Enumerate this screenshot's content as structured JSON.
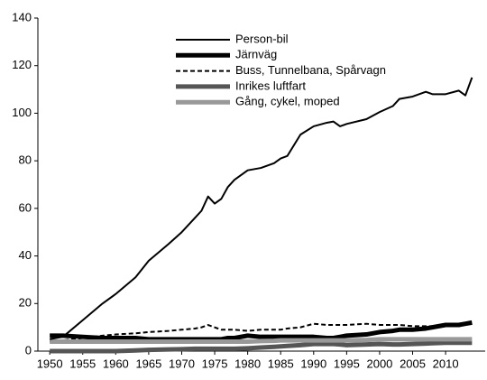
{
  "chart_data": {
    "type": "line",
    "x": [
      1950,
      1952,
      1955,
      1958,
      1960,
      1963,
      1965,
      1968,
      1970,
      1972,
      1973,
      1974,
      1975,
      1976,
      1977,
      1978,
      1980,
      1982,
      1984,
      1985,
      1986,
      1988,
      1990,
      1992,
      1993,
      1994,
      1995,
      1998,
      2000,
      2002,
      2003,
      2005,
      2007,
      2008,
      2010,
      2012,
      2013,
      2014
    ],
    "series": [
      {
        "name": "Person-bil",
        "color": "#000000",
        "linewidth": 2,
        "linestyle": "solid",
        "values": [
          5,
          6,
          13,
          20,
          24,
          31,
          38,
          45,
          50,
          56,
          59,
          65,
          62,
          64,
          69,
          72,
          76,
          77,
          79,
          81,
          82,
          91,
          94.5,
          96,
          96.5,
          94.5,
          95.5,
          97.5,
          100.5,
          103,
          106,
          107,
          109,
          108,
          108,
          109.5,
          107.5,
          115
        ]
      },
      {
        "name": "Järnväg",
        "color": "#000000",
        "linewidth": 5,
        "linestyle": "solid",
        "values": [
          6.5,
          6.5,
          6,
          5.5,
          5.5,
          5.5,
          5,
          5,
          5,
          5,
          5,
          5,
          5,
          5,
          5.5,
          5.5,
          6.5,
          6,
          6,
          6,
          6,
          6,
          6,
          5.5,
          5.5,
          6,
          6.5,
          7,
          8,
          8.5,
          9,
          9,
          9.5,
          10,
          11,
          11,
          11.5,
          12
        ]
      },
      {
        "name": "Buss, Tunnelbana, Spårvagn",
        "color": "#000000",
        "linewidth": 2,
        "linestyle": "dashed",
        "values": [
          4,
          4.5,
          5.5,
          6.5,
          7,
          7.5,
          8,
          8.5,
          9,
          9.5,
          10,
          11,
          10,
          9,
          9,
          9,
          8.5,
          9,
          9,
          9,
          9.5,
          10,
          11.5,
          11,
          11,
          11,
          11,
          11.5,
          11,
          11,
          11,
          10.5,
          10.5,
          10.5,
          11,
          11,
          11.5,
          11.5
        ]
      },
      {
        "name": "Inrikes luftfart",
        "color": "#555555",
        "linewidth": 5,
        "linestyle": "solid",
        "values": [
          0,
          0,
          0,
          0,
          0,
          0.3,
          0.5,
          0.7,
          0.8,
          1,
          1,
          1,
          1,
          1,
          1,
          1,
          1.2,
          1.5,
          1.8,
          2,
          2.2,
          2.5,
          3,
          3,
          3,
          2.8,
          2.5,
          2.8,
          3,
          2.8,
          2.8,
          3,
          3.2,
          3.3,
          3.5,
          3.5,
          3.5,
          3.5
        ]
      },
      {
        "name": "Gång, cykel, moped",
        "color": "#999999",
        "linewidth": 5,
        "linestyle": "solid",
        "values": [
          4,
          4,
          4,
          4,
          4,
          4,
          4,
          4,
          4,
          4,
          4,
          4,
          4,
          4,
          4,
          4,
          4,
          4.2,
          4.3,
          4.5,
          4.5,
          4.5,
          4.5,
          4.5,
          4.5,
          4.5,
          4.5,
          4.7,
          5,
          5,
          5,
          5,
          5,
          5,
          5,
          5,
          5,
          5
        ]
      }
    ],
    "xlim": [
      1948.2,
      2016
    ],
    "ylim": [
      0,
      140
    ],
    "xticks": [
      1950,
      1955,
      1960,
      1965,
      1970,
      1975,
      1980,
      1985,
      1990,
      1995,
      2000,
      2005,
      2010
    ],
    "yticks": [
      0,
      20,
      40,
      60,
      80,
      100,
      120,
      140
    ]
  }
}
